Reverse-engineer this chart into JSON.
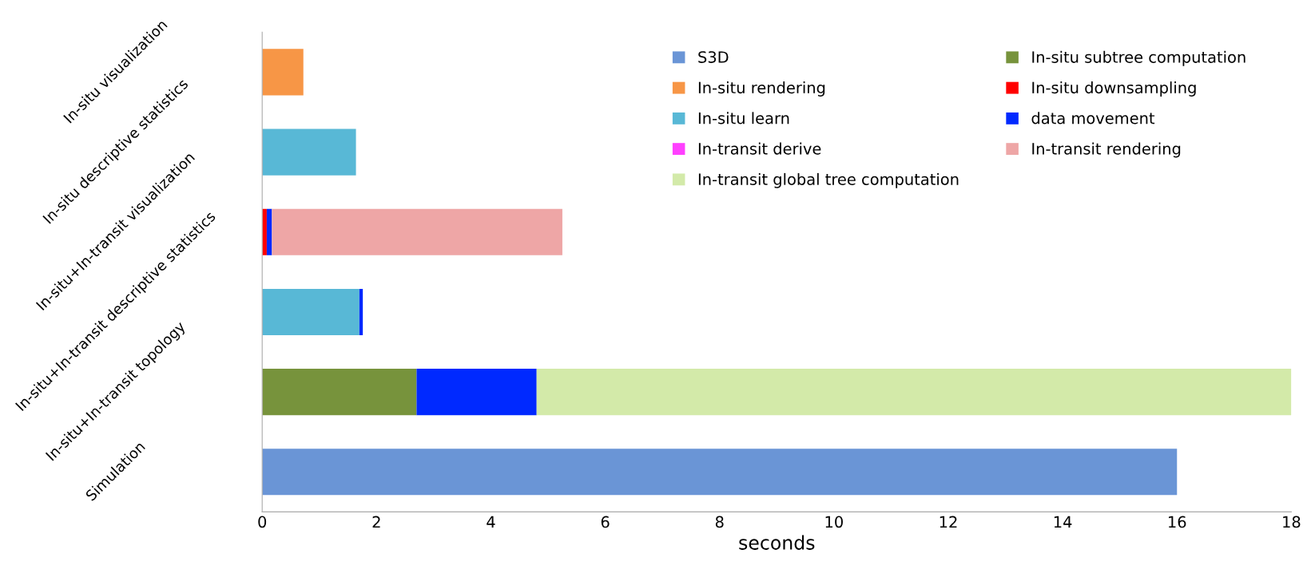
{
  "chart_data": {
    "type": "bar",
    "orientation": "horizontal",
    "stacked": true,
    "xlabel": "seconds",
    "categories": [
      "In-situ visualization",
      "In-situ descriptive statistics",
      "In-situ+In-transit visualization",
      "In-situ+In-transit descriptive statistics",
      "In-situ+In-transit topology",
      "Simulation"
    ],
    "series": [
      {
        "name": "S3D",
        "color": "#6a95d6",
        "values": [
          null,
          null,
          null,
          null,
          null,
          16
        ]
      },
      {
        "name": "In-situ subtree computation",
        "color": "#77933c",
        "values": [
          null,
          null,
          null,
          null,
          2.7,
          null
        ]
      },
      {
        "name": "In-situ rendering",
        "color": "#f79646",
        "values": [
          0.72,
          null,
          null,
          null,
          null,
          null
        ]
      },
      {
        "name": "In-situ downsampling",
        "color": "#ff0000",
        "values": [
          null,
          null,
          0.08,
          null,
          null,
          null
        ]
      },
      {
        "name": "In-situ learn",
        "color": "#58b8d6",
        "values": [
          null,
          1.64,
          null,
          1.7,
          null,
          null
        ]
      },
      {
        "name": "data movement",
        "color": "#0029ff",
        "values": [
          null,
          null,
          0.09,
          0.06,
          2.1,
          null
        ]
      },
      {
        "name": "In-transit derive",
        "color": "#ff40ff",
        "values": [
          null,
          null,
          null,
          null,
          null,
          null
        ]
      },
      {
        "name": "In-transit rendering",
        "color": "#eea6a6",
        "values": [
          null,
          null,
          5.08,
          null,
          null,
          null
        ]
      },
      {
        "name": "In-transit global tree computation",
        "color": "#d3eaa9",
        "values": [
          null,
          null,
          null,
          null,
          13.2,
          null
        ]
      }
    ],
    "xlim": [
      0,
      18
    ],
    "xticks": [
      0,
      2,
      4,
      6,
      8,
      10,
      12,
      14,
      16,
      18
    ],
    "grid": false,
    "legend": "top right"
  }
}
